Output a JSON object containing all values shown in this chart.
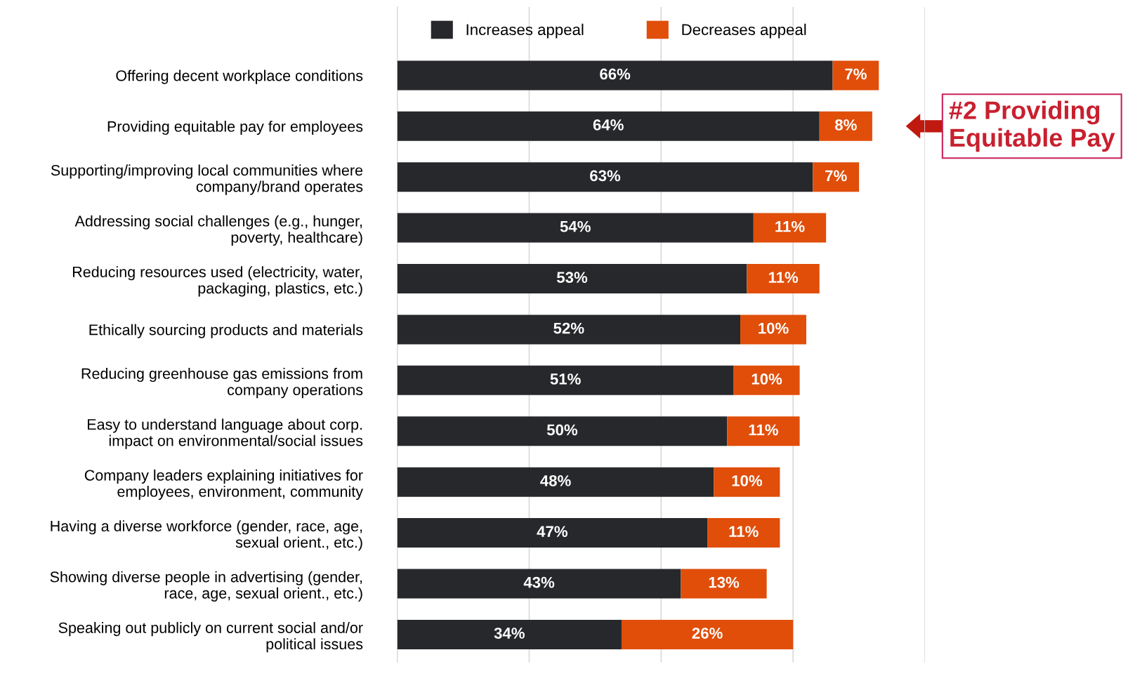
{
  "chart_data": {
    "type": "bar",
    "orientation": "horizontal",
    "stacked": true,
    "categories": [
      "Offering decent workplace conditions",
      "Providing equitable pay for employees",
      "Supporting/improving local communities where\ncompany/brand operates",
      "Addressing social challenges (e.g., hunger,\npoverty, healthcare)",
      "Reducing resources used (electricity, water,\npackaging, plastics, etc.)",
      "Ethically sourcing products and materials",
      "Reducing greenhouse gas emissions from\ncompany operations",
      "Easy to understand language about corp.\nimpact on environmental/social issues",
      "Company leaders explaining initiatives for\nemployees, environment, community",
      "Having a diverse workforce (gender, race, age,\nsexual orient., etc.)",
      "Showing diverse people in advertising (gender,\nrace, age, sexual orient., etc.)",
      "Speaking out publicly on current social and/or\npolitical issues"
    ],
    "series": [
      {
        "name": "Increases appeal",
        "color": "#26282b",
        "values": [
          66,
          64,
          63,
          54,
          53,
          52,
          51,
          50,
          48,
          47,
          43,
          34
        ],
        "value_labels": [
          "66%",
          "64%",
          "63%",
          "54%",
          "53%",
          "52%",
          "51%",
          "50%",
          "48%",
          "47%",
          "43%",
          "34%"
        ]
      },
      {
        "name": "Decreases appeal",
        "color": "#e04e0a",
        "values": [
          7,
          8,
          7,
          11,
          11,
          10,
          10,
          11,
          10,
          11,
          13,
          26
        ],
        "value_labels": [
          "7%",
          "8%",
          "7%",
          "11%",
          "11%",
          "10%",
          "10%",
          "11%",
          "10%",
          "11%",
          "13%",
          "26%"
        ]
      }
    ],
    "xlim": [
      0,
      80
    ],
    "xticks": [
      {
        "value": 0,
        "label": null
      },
      {
        "value": 20,
        "label": null
      },
      {
        "value": 40,
        "label": null
      },
      {
        "value": 60,
        "label": null
      },
      {
        "value": 80,
        "label": null
      }
    ],
    "tick_labels": "y",
    "grid": "x",
    "legend": "top",
    "annotations": [
      "#2 Providing\nEquitable Pay"
    ]
  }
}
